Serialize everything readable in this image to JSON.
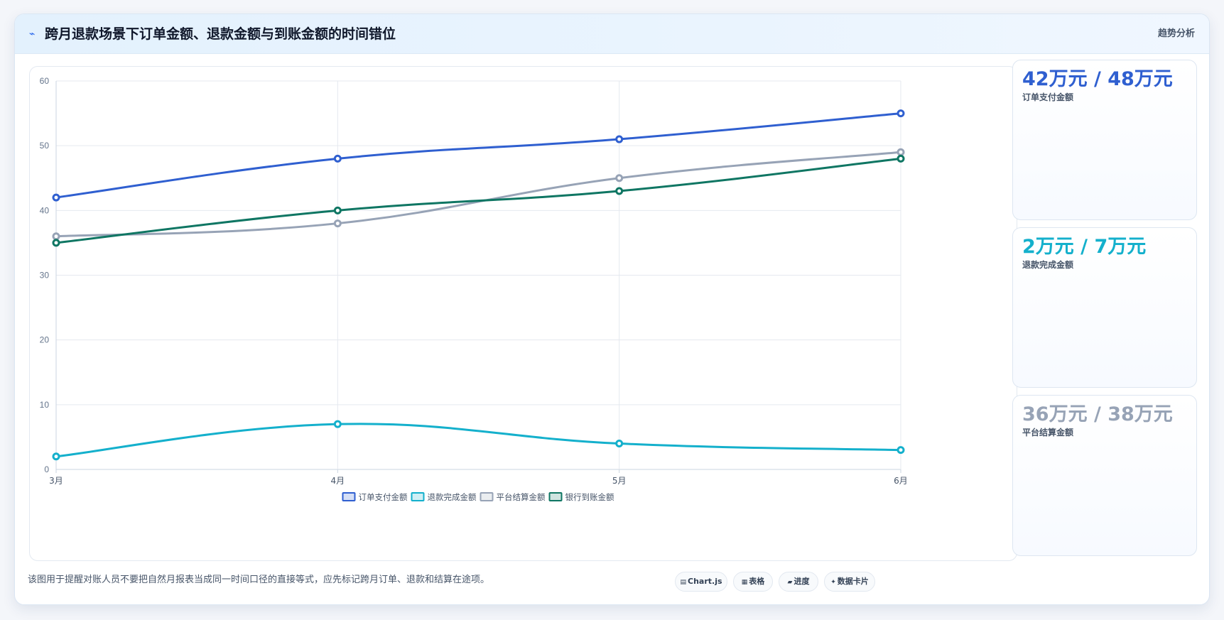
{
  "header": {
    "icon": "⌁",
    "title": "跨月退款场景下订单金额、退款金额与到账金额的时间错位",
    "tag": "趋势分析"
  },
  "colors": {
    "blue": "#2f5fd0",
    "cyan": "#14b0cc",
    "gray": "#97a3b6",
    "green": "#0f7663"
  },
  "chart_data": {
    "type": "line",
    "categories": [
      "3月",
      "4月",
      "5月",
      "6月"
    ],
    "ylim": [
      0,
      60
    ],
    "yticks": [
      0,
      10,
      20,
      30,
      40,
      50,
      60
    ],
    "grid": true,
    "legend_position": "bottom",
    "series": [
      {
        "name": "订单支付金额",
        "color": "#2f5fd0",
        "values": [
          42,
          48,
          51,
          55
        ]
      },
      {
        "name": "退款完成金额",
        "color": "#14b0cc",
        "values": [
          2,
          7,
          4,
          3
        ]
      },
      {
        "name": "平台结算金额",
        "color": "#97a3b6",
        "values": [
          36,
          38,
          45,
          49
        ]
      },
      {
        "name": "银行到账金额",
        "color": "#0f7663",
        "values": [
          35,
          40,
          43,
          48
        ]
      }
    ]
  },
  "stats": [
    {
      "value": "42万元 / 48万元",
      "label": "订单支付金额",
      "color": "#2f5fd0"
    },
    {
      "value": "2万元 / 7万元",
      "label": "退款完成金额",
      "color": "#14b0cc"
    },
    {
      "value": "36万元 / 38万元",
      "label": "平台结算金额",
      "color": "#97a3b6"
    }
  ],
  "footer": {
    "note": "该图用于提醒对账人员不要把自然月报表当成同一时间口径的直接等式，应先标记跨月订单、退款和结算在途项。",
    "buttons": [
      {
        "icon": "▤",
        "label": "Chart.js"
      },
      {
        "icon": "▦",
        "label": "表格"
      },
      {
        "icon": "▰",
        "label": "进度"
      },
      {
        "icon": "✦",
        "label": "数据卡片"
      }
    ]
  }
}
